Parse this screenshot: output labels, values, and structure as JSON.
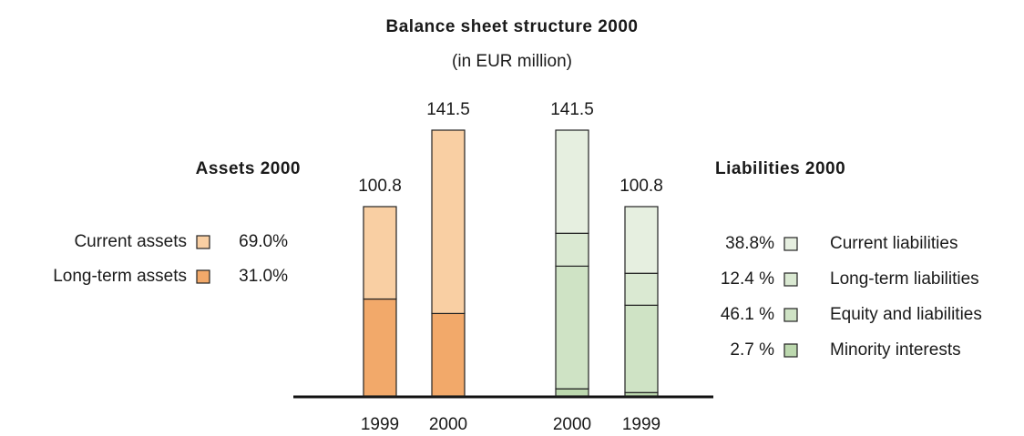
{
  "chart_data": {
    "type": "bar",
    "stacked": true,
    "title": "Balance sheet structure 2000",
    "subtitle": "(in EUR million)",
    "categories": [
      "1999",
      "2000",
      "2000",
      "1999"
    ],
    "totals": [
      100.8,
      141.5,
      141.5,
      100.8
    ],
    "legends": [
      {
        "title": "Assets 2000",
        "position": "left"
      },
      {
        "title": "Liabilities 2000",
        "position": "right"
      }
    ],
    "series": [
      {
        "name": "Long-term assets",
        "color": "#f2a96a",
        "legend": 0,
        "share": 31.0,
        "share_label": "31.0%",
        "values": [
          51.6,
          43.9,
          null,
          null
        ]
      },
      {
        "name": "Current assets",
        "color": "#f9cfa3",
        "legend": 0,
        "share": 69.0,
        "share_label": "69.0%",
        "values": [
          49.2,
          97.6,
          null,
          null
        ]
      },
      {
        "name": "Minority interests",
        "color": "#bcd8ae",
        "legend": 1,
        "share": 2.7,
        "share_label": "2.7 %",
        "values": [
          null,
          null,
          3.8,
          1.8
        ]
      },
      {
        "name": "Equity and liabilities",
        "color": "#cfe3c5",
        "legend": 1,
        "share": 46.1,
        "share_label": "46.1 %",
        "values": [
          null,
          null,
          65.3,
          46.5
        ]
      },
      {
        "name": "Long-term liabilities",
        "color": "#dae9d2",
        "legend": 1,
        "share": 12.4,
        "share_label": "12.4 %",
        "values": [
          null,
          null,
          17.5,
          17.0
        ]
      },
      {
        "name": "Current liabilities",
        "color": "#e6efe0",
        "legend": 1,
        "share": 38.8,
        "share_label": "38.8%",
        "values": [
          null,
          null,
          54.9,
          35.5
        ]
      }
    ]
  }
}
